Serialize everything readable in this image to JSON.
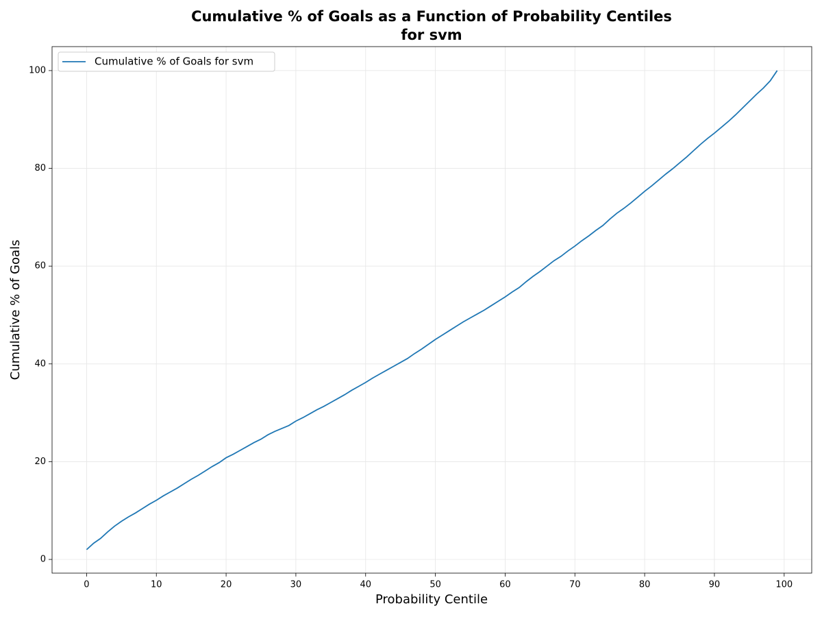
{
  "chart_data": {
    "type": "line",
    "title": [
      "Cumulative % of Goals as a Function of Probability Centiles",
      "for svm"
    ],
    "xlabel": "Probability Centile",
    "ylabel": "Cumulative % of Goals",
    "x": [
      0,
      1,
      2,
      3,
      4,
      5,
      6,
      7,
      8,
      9,
      10,
      11,
      12,
      13,
      14,
      15,
      16,
      17,
      18,
      19,
      20,
      21,
      22,
      23,
      24,
      25,
      26,
      27,
      28,
      29,
      30,
      31,
      32,
      33,
      34,
      35,
      36,
      37,
      38,
      39,
      40,
      41,
      42,
      43,
      44,
      45,
      46,
      47,
      48,
      49,
      50,
      51,
      52,
      53,
      54,
      55,
      56,
      57,
      58,
      59,
      60,
      61,
      62,
      63,
      64,
      65,
      66,
      67,
      68,
      69,
      70,
      71,
      72,
      73,
      74,
      75,
      76,
      77,
      78,
      79,
      80,
      81,
      82,
      83,
      84,
      85,
      86,
      87,
      88,
      89,
      90,
      91,
      92,
      93,
      94,
      95,
      96,
      97,
      98,
      99
    ],
    "series": [
      {
        "name": "Cumulative % of Goals for svm",
        "color": "#1f77b4",
        "values": [
          2,
          3.3,
          4.3,
          5.6,
          6.8,
          7.8,
          8.7,
          9.5,
          10.4,
          11.3,
          12.1,
          13.0,
          13.8,
          14.6,
          15.5,
          16.4,
          17.2,
          18.1,
          19.0,
          19.8,
          20.8,
          21.5,
          22.3,
          23.1,
          23.9,
          24.6,
          25.5,
          26.2,
          26.8,
          27.4,
          28.3,
          29.0,
          29.8,
          30.6,
          31.3,
          32.1,
          32.9,
          33.7,
          34.6,
          35.4,
          36.2,
          37.1,
          37.9,
          38.7,
          39.5,
          40.3,
          41.1,
          42.1,
          43.0,
          44.0,
          45.0,
          45.9,
          46.8,
          47.7,
          48.6,
          49.4,
          50.2,
          51.0,
          51.9,
          52.8,
          53.7,
          54.7,
          55.6,
          56.8,
          57.9,
          58.9,
          60.0,
          61.1,
          62.0,
          63.1,
          64.1,
          65.2,
          66.2,
          67.3,
          68.3,
          69.6,
          70.8,
          71.8,
          72.9,
          74.1,
          75.3,
          76.4,
          77.6,
          78.8,
          79.9,
          81.1,
          82.3,
          83.6,
          84.9,
          86.1,
          87.2,
          88.4,
          89.6,
          90.9,
          92.3,
          93.7,
          95.1,
          96.4,
          97.9,
          100
        ]
      }
    ],
    "xlim": [
      -4.95,
      103.95
    ],
    "xticks": [
      0,
      10,
      20,
      30,
      40,
      50,
      60,
      70,
      80,
      90,
      100
    ],
    "ylim": [
      -2.8,
      104.9
    ],
    "yticks": [
      0,
      20,
      40,
      60,
      80,
      100
    ],
    "grid": true,
    "legend": "upper left"
  }
}
